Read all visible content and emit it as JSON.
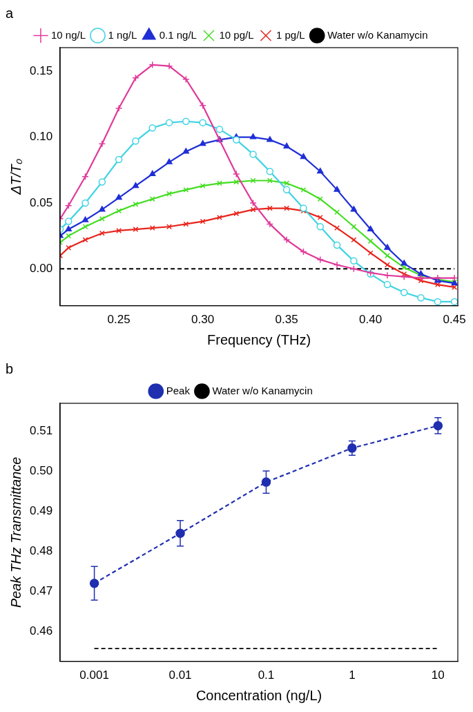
{
  "chart_data": [
    {
      "type": "line",
      "title": "a",
      "x_label": "Frequency (THz)",
      "y_label": "ΔT/T₀",
      "x": [
        0.215,
        0.22,
        0.23,
        0.24,
        0.25,
        0.26,
        0.27,
        0.28,
        0.29,
        0.3,
        0.31,
        0.32,
        0.33,
        0.34,
        0.35,
        0.36,
        0.37,
        0.38,
        0.39,
        0.4,
        0.41,
        0.42,
        0.43,
        0.44,
        0.45
      ],
      "xlim": [
        0.215,
        0.452
      ],
      "xticks": [
        0.25,
        {
          "value": 0.3,
          "label": "0.30"
        },
        0.35,
        {
          "value": 0.4,
          "label": "0.40"
        },
        0.45
      ],
      "ylim": [
        -0.028,
        0.168
      ],
      "yticks": [
        {
          "value": 0,
          "label": "0.00"
        },
        0.05,
        {
          "value": 0.1,
          "label": "0.10"
        },
        0.15
      ],
      "legend": "top",
      "series": [
        {
          "name": "10 ng/L",
          "color": "#e0399a",
          "marker": "cross",
          "line_style": "solid",
          "values": [
            0.038,
            0.048,
            0.07,
            0.095,
            0.122,
            0.145,
            0.155,
            0.154,
            0.144,
            0.124,
            0.098,
            0.072,
            0.05,
            0.034,
            0.022,
            0.013,
            0.007,
            0.003,
            0.0,
            -0.003,
            -0.005,
            -0.006,
            -0.007,
            -0.007,
            -0.007
          ]
        },
        {
          "name": "1 ng/L",
          "color": "#3fd3e3",
          "marker": "open_circle",
          "line_style": "solid",
          "values": [
            0.03,
            0.036,
            0.05,
            0.066,
            0.083,
            0.097,
            0.107,
            0.111,
            0.112,
            0.111,
            0.106,
            0.098,
            0.087,
            0.074,
            0.06,
            0.046,
            0.032,
            0.018,
            0.006,
            -0.004,
            -0.012,
            -0.018,
            -0.022,
            -0.025,
            -0.025
          ]
        },
        {
          "name": "0.1 ng/L",
          "color": "#1f2fd6",
          "marker": "triangle",
          "line_style": "solid",
          "values": [
            0.025,
            0.03,
            0.037,
            0.045,
            0.054,
            0.063,
            0.072,
            0.081,
            0.089,
            0.095,
            0.098,
            0.1,
            0.1,
            0.098,
            0.093,
            0.085,
            0.074,
            0.06,
            0.045,
            0.03,
            0.016,
            0.004,
            -0.004,
            -0.009,
            -0.011
          ]
        },
        {
          "name": "10 pg/L",
          "color": "#44dd22",
          "marker": "x",
          "line_style": "solid",
          "values": [
            0.02,
            0.025,
            0.032,
            0.038,
            0.044,
            0.049,
            0.053,
            0.057,
            0.06,
            0.063,
            0.065,
            0.066,
            0.067,
            0.067,
            0.065,
            0.06,
            0.053,
            0.043,
            0.032,
            0.021,
            0.01,
            0.001,
            -0.005,
            -0.008,
            -0.01
          ]
        },
        {
          "name": "1 pg/L",
          "color": "#e8241c",
          "marker": "x",
          "line_style": "solid",
          "values": [
            0.01,
            0.016,
            0.022,
            0.027,
            0.029,
            0.03,
            0.031,
            0.032,
            0.034,
            0.036,
            0.039,
            0.042,
            0.045,
            0.046,
            0.046,
            0.044,
            0.039,
            0.031,
            0.022,
            0.012,
            0.003,
            -0.004,
            -0.009,
            -0.012,
            -0.014
          ]
        },
        {
          "name": "Water w/o Kanamycin",
          "color": "#000000",
          "marker": "none",
          "line_style": "dashed",
          "values": [
            0,
            0,
            0,
            0,
            0,
            0,
            0,
            0,
            0,
            0,
            0,
            0,
            0,
            0,
            0,
            0,
            0,
            0,
            0,
            0,
            0,
            0,
            0,
            0,
            0
          ]
        }
      ]
    },
    {
      "type": "line",
      "title": "b",
      "x_label": "Concentration (ng/L)",
      "y_label": "Peak THz Transmittance",
      "log": "x",
      "x": [
        0.001,
        0.01,
        0.1,
        1,
        10
      ],
      "xlim": [
        0.0004,
        17
      ],
      "xticks": [
        0.001,
        0.01,
        0.1,
        1,
        10
      ],
      "ylim": [
        0.4525,
        0.517
      ],
      "yticks": [
        0.46,
        0.47,
        0.48,
        0.49,
        {
          "value": 0.5,
          "label": "0.50"
        },
        0.51
      ],
      "legend": "top",
      "series": [
        {
          "name": "Peak",
          "color": "#1f2fb0",
          "marker": "circle",
          "line_style": "dashed",
          "values": [
            0.472,
            0.4845,
            0.4973,
            0.5058,
            0.5114
          ],
          "errors": [
            0.0042,
            0.0032,
            0.0028,
            0.0018,
            0.002
          ]
        },
        {
          "name": "Water w/o Kanamycin",
          "color": "#000000",
          "marker": "none",
          "line_style": "dashed",
          "values": [
            0.4557,
            0.4557,
            0.4557,
            0.4557,
            0.4557
          ]
        }
      ]
    }
  ]
}
